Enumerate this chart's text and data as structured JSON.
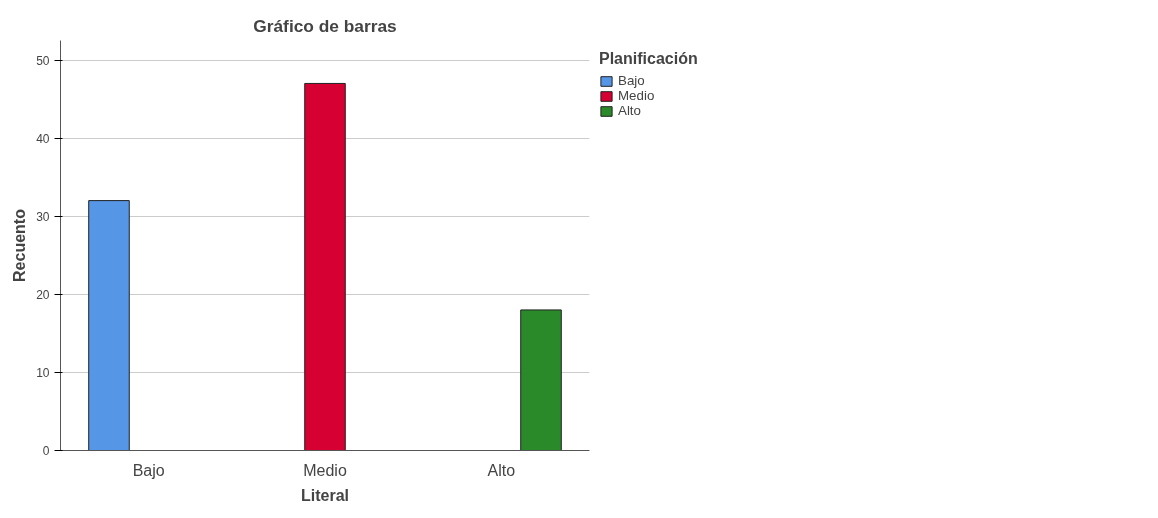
{
  "chart_data": {
    "type": "bar",
    "title": "Gráfico de barras",
    "xlabel": "Literal",
    "ylabel": "Recuento",
    "legend_title": "Planificación",
    "categories": [
      "Bajo",
      "Medio",
      "Alto"
    ],
    "series": [
      {
        "name": "Bajo",
        "color": "#5596e6",
        "values": [
          32,
          null,
          null
        ]
      },
      {
        "name": "Medio",
        "color": "#d60032",
        "values": [
          null,
          47,
          null
        ]
      },
      {
        "name": "Alto",
        "color": "#2a8a2a",
        "values": [
          null,
          null,
          18
        ]
      }
    ],
    "ylim": [
      0,
      52.5
    ],
    "yticks": [
      0,
      10,
      20,
      30,
      40,
      50
    ],
    "grid": "y",
    "legend": "top right"
  }
}
